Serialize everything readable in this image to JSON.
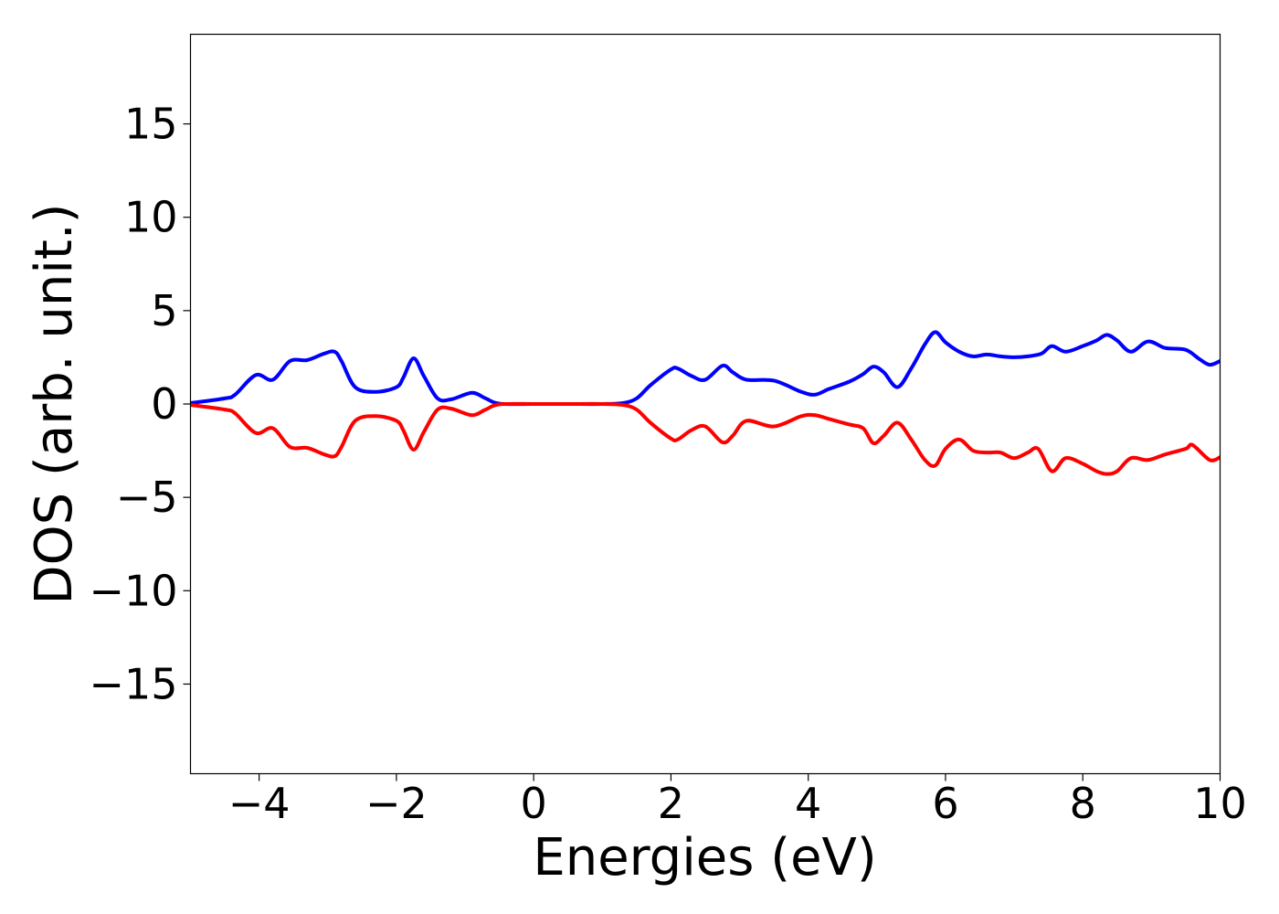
{
  "chart_data": {
    "type": "line",
    "title": "",
    "xlabel": "Energies (eV)",
    "ylabel": "DOS (arb. unit.)",
    "xlim": [
      -5,
      10
    ],
    "ylim": [
      -19.8,
      19.8
    ],
    "x_ticks": [
      -4,
      -2,
      0,
      2,
      4,
      6,
      8,
      10
    ],
    "x_tick_labels": [
      "−4",
      "−2",
      "0",
      "2",
      "4",
      "6",
      "8",
      "10"
    ],
    "y_ticks": [
      -15,
      -10,
      -5,
      0,
      5,
      10,
      15
    ],
    "y_tick_labels": [
      "−15",
      "−10",
      "−5",
      "0",
      "5",
      "10",
      "15"
    ],
    "grid": false,
    "legend": false,
    "series": [
      {
        "color": "#0000ff",
        "x": [
          -5.0,
          -4.5,
          -4.35,
          -4.05,
          -3.8,
          -3.55,
          -3.3,
          -3.05,
          -2.9,
          -2.8,
          -2.6,
          -2.3,
          -2.0,
          -1.9,
          -1.75,
          -1.6,
          -1.4,
          -1.2,
          -0.9,
          -0.7,
          -0.5,
          0.0,
          0.5,
          1.0,
          1.3,
          1.5,
          1.7,
          2.0,
          2.1,
          2.3,
          2.5,
          2.75,
          2.9,
          3.1,
          3.5,
          3.9,
          4.1,
          4.3,
          4.6,
          4.8,
          4.95,
          5.1,
          5.3,
          5.5,
          5.7,
          5.85,
          6.0,
          6.2,
          6.4,
          6.6,
          6.8,
          7.0,
          7.2,
          7.4,
          7.55,
          7.75,
          8.0,
          8.2,
          8.35,
          8.5,
          8.7,
          8.95,
          9.2,
          9.5,
          9.7,
          9.85,
          10.0
        ],
        "y": [
          0.05,
          0.3,
          0.5,
          1.55,
          1.3,
          2.3,
          2.35,
          2.7,
          2.8,
          2.3,
          0.9,
          0.65,
          0.9,
          1.4,
          2.45,
          1.5,
          0.3,
          0.25,
          0.6,
          0.3,
          0.02,
          0.0,
          0.0,
          0.0,
          0.05,
          0.3,
          1.0,
          1.85,
          1.9,
          1.5,
          1.3,
          2.05,
          1.7,
          1.3,
          1.25,
          0.65,
          0.5,
          0.8,
          1.2,
          1.6,
          2.0,
          1.7,
          0.9,
          1.9,
          3.2,
          3.85,
          3.3,
          2.8,
          2.55,
          2.65,
          2.55,
          2.5,
          2.55,
          2.7,
          3.1,
          2.8,
          3.1,
          3.4,
          3.7,
          3.4,
          2.8,
          3.35,
          3.0,
          2.9,
          2.4,
          2.1,
          2.3
        ]
      },
      {
        "color": "#ff0000",
        "x": [
          -5.0,
          -4.5,
          -4.35,
          -4.05,
          -3.8,
          -3.55,
          -3.3,
          -3.05,
          -2.9,
          -2.8,
          -2.6,
          -2.3,
          -2.0,
          -1.9,
          -1.75,
          -1.6,
          -1.4,
          -1.2,
          -0.9,
          -0.7,
          -0.5,
          0.0,
          0.5,
          1.0,
          1.3,
          1.5,
          1.7,
          2.0,
          2.1,
          2.3,
          2.5,
          2.75,
          2.9,
          3.1,
          3.5,
          3.9,
          4.1,
          4.3,
          4.6,
          4.8,
          4.95,
          5.1,
          5.3,
          5.5,
          5.7,
          5.85,
          6.0,
          6.2,
          6.4,
          6.6,
          6.8,
          7.0,
          7.2,
          7.35,
          7.55,
          7.75,
          8.0,
          8.2,
          8.35,
          8.5,
          8.7,
          8.95,
          9.2,
          9.5,
          9.6,
          9.85,
          10.0
        ],
        "y": [
          -0.05,
          -0.3,
          -0.5,
          -1.55,
          -1.3,
          -2.3,
          -2.35,
          -2.7,
          -2.8,
          -2.3,
          -0.9,
          -0.65,
          -0.9,
          -1.4,
          -2.45,
          -1.5,
          -0.3,
          -0.25,
          -0.6,
          -0.3,
          -0.02,
          0.0,
          0.0,
          0.0,
          -0.05,
          -0.3,
          -1.0,
          -1.85,
          -1.9,
          -1.4,
          -1.2,
          -2.05,
          -1.7,
          -0.9,
          -1.2,
          -0.65,
          -0.6,
          -0.8,
          -1.1,
          -1.3,
          -2.1,
          -1.7,
          -1.0,
          -1.9,
          -3.0,
          -3.3,
          -2.4,
          -1.9,
          -2.5,
          -2.6,
          -2.6,
          -2.9,
          -2.6,
          -2.4,
          -3.6,
          -2.9,
          -3.2,
          -3.6,
          -3.75,
          -3.6,
          -2.9,
          -3.0,
          -2.7,
          -2.4,
          -2.2,
          -3.0,
          -2.85
        ]
      }
    ]
  }
}
